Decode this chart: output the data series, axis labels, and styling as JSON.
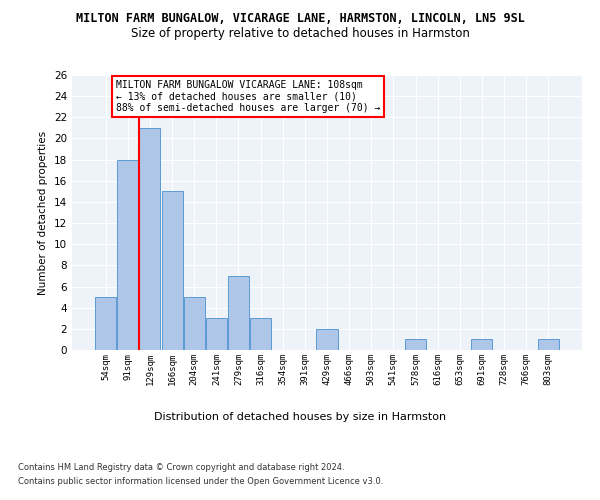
{
  "title1": "MILTON FARM BUNGALOW, VICARAGE LANE, HARMSTON, LINCOLN, LN5 9SL",
  "title2": "Size of property relative to detached houses in Harmston",
  "xlabel": "Distribution of detached houses by size in Harmston",
  "ylabel": "Number of detached properties",
  "categories": [
    "54sqm",
    "91sqm",
    "129sqm",
    "166sqm",
    "204sqm",
    "241sqm",
    "279sqm",
    "316sqm",
    "354sqm",
    "391sqm",
    "429sqm",
    "466sqm",
    "503sqm",
    "541sqm",
    "578sqm",
    "616sqm",
    "653sqm",
    "691sqm",
    "728sqm",
    "766sqm",
    "803sqm"
  ],
  "values": [
    5,
    18,
    21,
    15,
    5,
    3,
    7,
    3,
    0,
    0,
    2,
    0,
    0,
    0,
    1,
    0,
    0,
    1,
    0,
    0,
    1
  ],
  "bar_color": "#aec6e8",
  "bar_edge_color": "#5b9bd5",
  "vline_x": 1.5,
  "vline_color": "red",
  "annotation_text": "MILTON FARM BUNGALOW VICARAGE LANE: 108sqm\n← 13% of detached houses are smaller (10)\n88% of semi-detached houses are larger (70) →",
  "annotation_box_color": "white",
  "annotation_box_edge": "red",
  "ylim": [
    0,
    26
  ],
  "yticks": [
    0,
    2,
    4,
    6,
    8,
    10,
    12,
    14,
    16,
    18,
    20,
    22,
    24,
    26
  ],
  "footer1": "Contains HM Land Registry data © Crown copyright and database right 2024.",
  "footer2": "Contains public sector information licensed under the Open Government Licence v3.0.",
  "bg_color": "#eef2f9",
  "grid_color": "white"
}
